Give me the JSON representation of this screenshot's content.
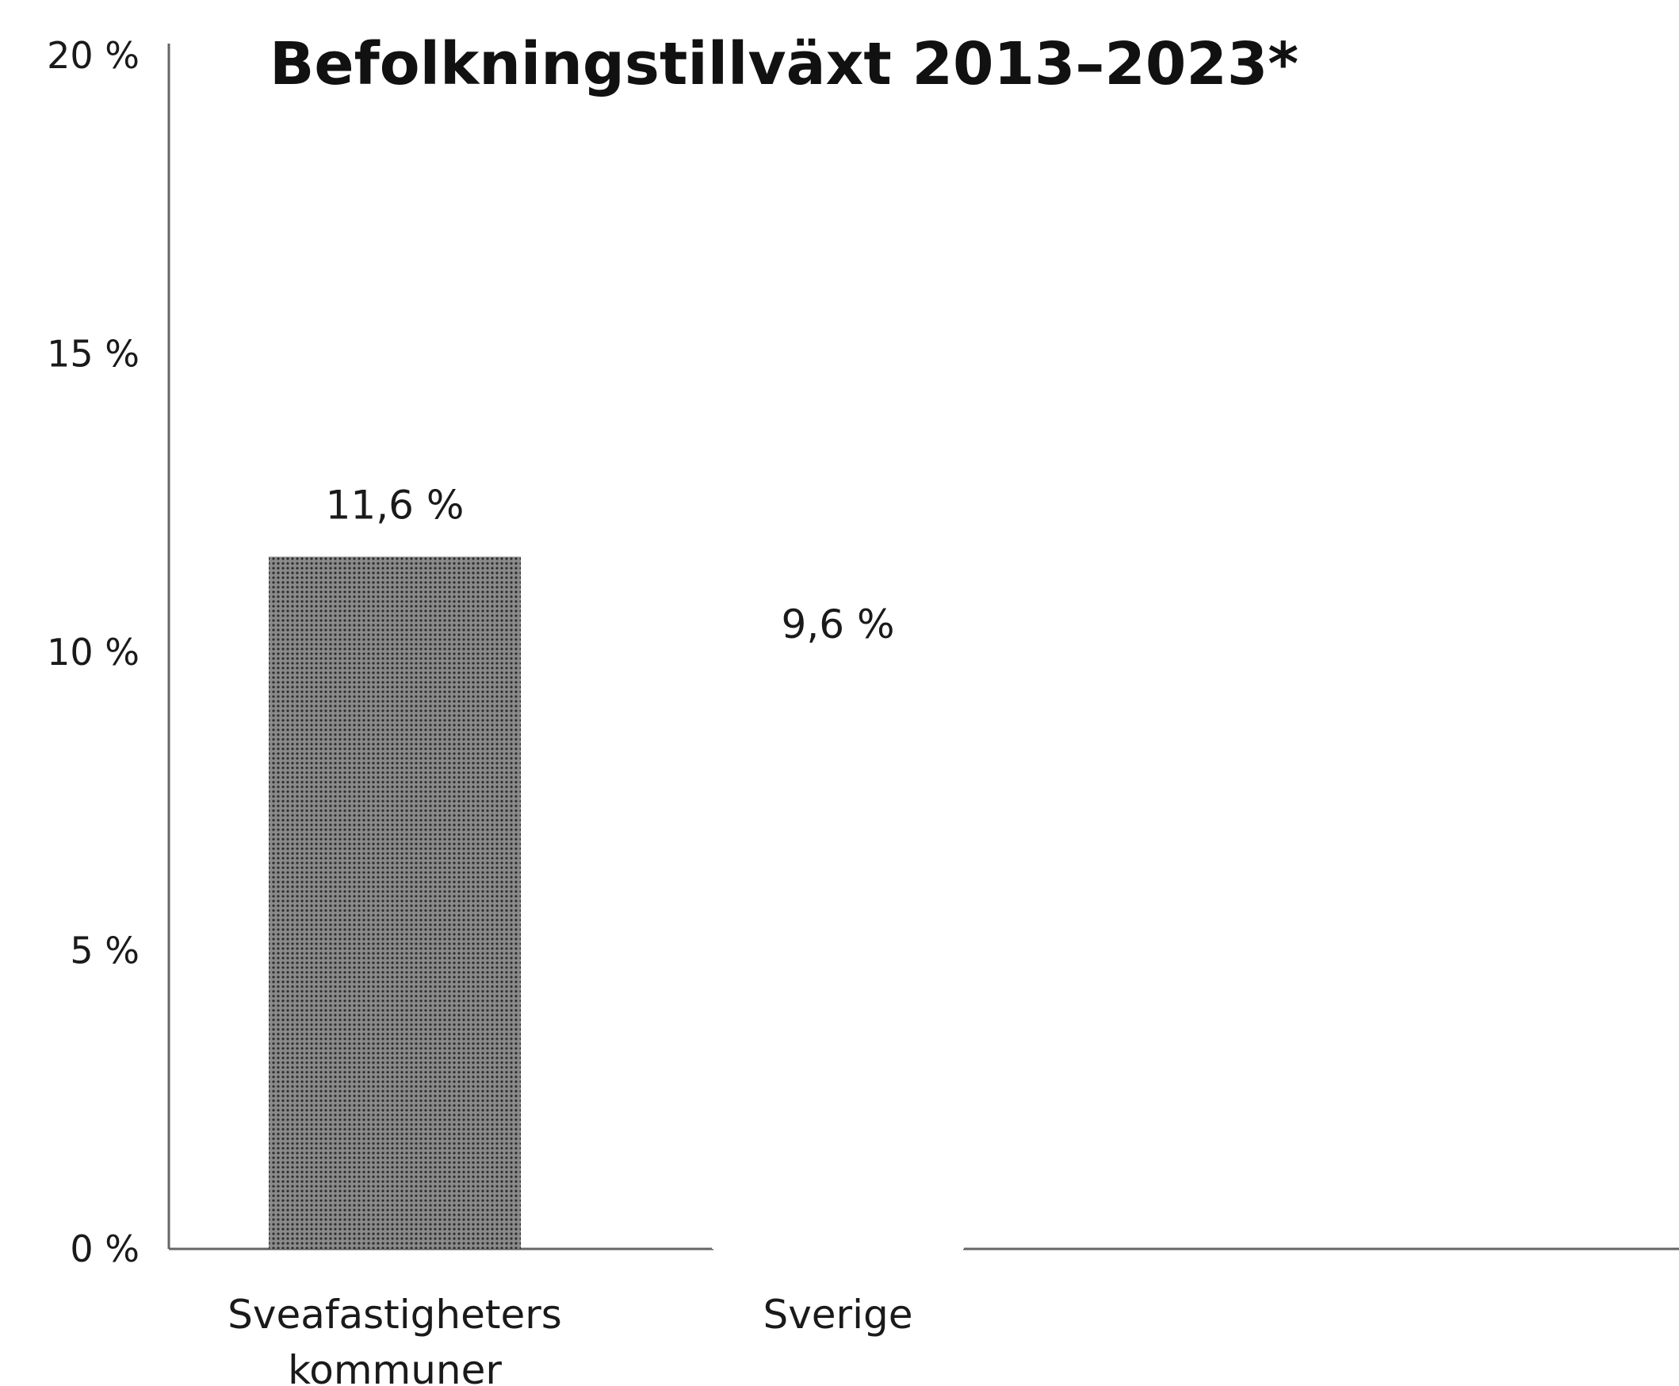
{
  "chart_data": {
    "type": "bar",
    "title": "Befolkningstillväxt 2013–2023*",
    "xlabel": "",
    "ylabel": "",
    "categories": [
      "Sveafastigheters kommuner",
      "Sverige"
    ],
    "category_lines": [
      [
        "Sveafastigheters",
        "kommuner"
      ],
      [
        "Sverige"
      ]
    ],
    "values": [
      11.6,
      9.6
    ],
    "value_labels": [
      "11,6 %",
      "9,6 %"
    ],
    "ylim": [
      0,
      20
    ],
    "yticks": [
      0,
      5,
      10,
      15,
      20
    ],
    "ytick_labels": [
      "0 %",
      "5 %",
      "10 %",
      "15 %",
      "20 %"
    ],
    "grid": false,
    "colors": {
      "bar_dark": "#8a8a8a",
      "bar_dot": "#2e2e2e",
      "bar_light": "#ffffff",
      "axis": "#666666",
      "text": "#1a1a1a"
    }
  }
}
